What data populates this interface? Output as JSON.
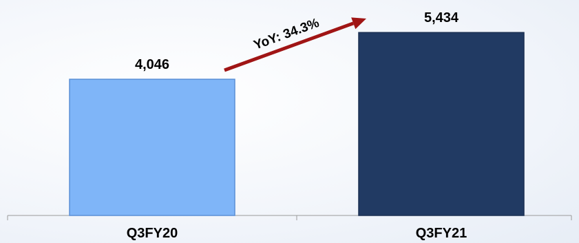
{
  "colors": {
    "bar_q3fy20": "#7fb5f8",
    "bar_q3fy20_stroke": "#5a8fd6",
    "bar_q3fy21": "#213a63",
    "bar_q3fy21_stroke": "#1a2f52",
    "arrow": "#a01515",
    "axis": "#9a9a9a"
  },
  "chart_data": {
    "type": "bar",
    "categories": [
      "Q3FY20",
      "Q3FY21"
    ],
    "values": [
      4046,
      5434
    ],
    "value_labels": [
      "4,046",
      "5,434"
    ],
    "ylim": [
      0,
      6400
    ],
    "grid": false,
    "annotation": {
      "text": "YoY: 34.3%"
    }
  }
}
